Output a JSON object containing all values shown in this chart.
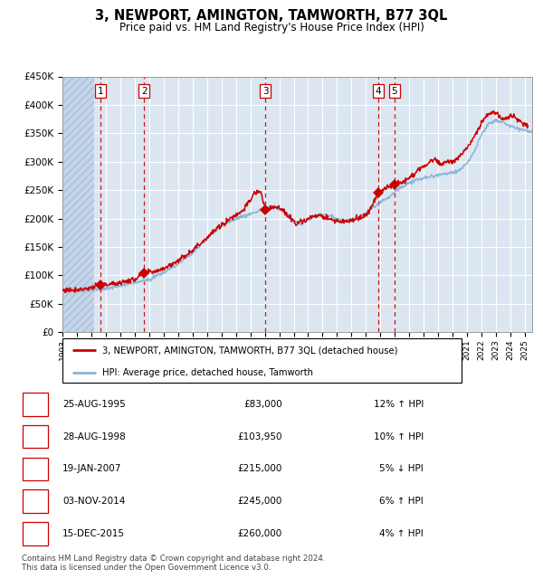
{
  "title": "3, NEWPORT, AMINGTON, TAMWORTH, B77 3QL",
  "subtitle": "Price paid vs. HM Land Registry's House Price Index (HPI)",
  "ylim": [
    0,
    450000
  ],
  "yticks": [
    0,
    50000,
    100000,
    150000,
    200000,
    250000,
    300000,
    350000,
    400000,
    450000
  ],
  "ytick_labels": [
    "£0",
    "£50K",
    "£100K",
    "£150K",
    "£200K",
    "£250K",
    "£300K",
    "£350K",
    "£400K",
    "£450K"
  ],
  "xlim_start": 1993.0,
  "xlim_end": 2025.5,
  "background_color": "#ffffff",
  "plot_bg_color": "#dce6f1",
  "hatch_region_end": 1995.2,
  "hatch_color": "#c5d5e8",
  "grid_color": "#ffffff",
  "hpi_line_color": "#8ab4d8",
  "price_line_color": "#cc0000",
  "marker_color": "#cc0000",
  "vline_color": "#cc0000",
  "sale_events": [
    {
      "num": 1,
      "date_str": "25-AUG-1995",
      "price": 83000,
      "year": 1995.648,
      "hpi_pct": 12,
      "direction": "↑"
    },
    {
      "num": 2,
      "date_str": "28-AUG-1998",
      "price": 103950,
      "year": 1998.657,
      "hpi_pct": 10,
      "direction": "↑"
    },
    {
      "num": 3,
      "date_str": "19-JAN-2007",
      "price": 215000,
      "year": 2007.052,
      "hpi_pct": 5,
      "direction": "↓"
    },
    {
      "num": 4,
      "date_str": "03-NOV-2014",
      "price": 245000,
      "year": 2014.84,
      "hpi_pct": 6,
      "direction": "↑"
    },
    {
      "num": 5,
      "date_str": "15-DEC-2015",
      "price": 260000,
      "year": 2015.956,
      "hpi_pct": 4,
      "direction": "↑"
    }
  ],
  "legend_label_price": "3, NEWPORT, AMINGTON, TAMWORTH, B77 3QL (detached house)",
  "legend_label_hpi": "HPI: Average price, detached house, Tamworth",
  "footer": "Contains HM Land Registry data © Crown copyright and database right 2024.\nThis data is licensed under the Open Government Licence v3.0.",
  "hpi_anchors": [
    [
      1993.0,
      72000
    ],
    [
      1994.0,
      73000
    ],
    [
      1995.0,
      74000
    ],
    [
      1996.0,
      77000
    ],
    [
      1997.0,
      82000
    ],
    [
      1998.0,
      87000
    ],
    [
      1999.0,
      93000
    ],
    [
      2000.0,
      105000
    ],
    [
      2001.0,
      120000
    ],
    [
      2002.0,
      140000
    ],
    [
      2003.0,
      165000
    ],
    [
      2004.0,
      188000
    ],
    [
      2005.0,
      200000
    ],
    [
      2006.0,
      208000
    ],
    [
      2007.0,
      218000
    ],
    [
      2007.8,
      220000
    ],
    [
      2008.5,
      210000
    ],
    [
      2009.0,
      195000
    ],
    [
      2009.5,
      190000
    ],
    [
      2010.0,
      198000
    ],
    [
      2010.5,
      205000
    ],
    [
      2011.0,
      208000
    ],
    [
      2011.5,
      205000
    ],
    [
      2012.0,
      200000
    ],
    [
      2012.5,
      197000
    ],
    [
      2013.0,
      198000
    ],
    [
      2013.5,
      202000
    ],
    [
      2014.0,
      210000
    ],
    [
      2014.5,
      220000
    ],
    [
      2015.0,
      228000
    ],
    [
      2015.5,
      235000
    ],
    [
      2016.0,
      248000
    ],
    [
      2016.5,
      255000
    ],
    [
      2017.0,
      263000
    ],
    [
      2017.5,
      268000
    ],
    [
      2018.0,
      272000
    ],
    [
      2018.5,
      274000
    ],
    [
      2019.0,
      276000
    ],
    [
      2019.5,
      278000
    ],
    [
      2020.0,
      280000
    ],
    [
      2020.5,
      285000
    ],
    [
      2021.0,
      298000
    ],
    [
      2021.5,
      318000
    ],
    [
      2022.0,
      348000
    ],
    [
      2022.5,
      368000
    ],
    [
      2023.0,
      372000
    ],
    [
      2023.5,
      368000
    ],
    [
      2024.0,
      362000
    ],
    [
      2024.5,
      358000
    ],
    [
      2025.0,
      355000
    ],
    [
      2025.5,
      352000
    ]
  ],
  "price_anchors": [
    [
      1993.0,
      74000
    ],
    [
      1994.0,
      75000
    ],
    [
      1995.0,
      78000
    ],
    [
      1995.648,
      83000
    ],
    [
      1996.5,
      85000
    ],
    [
      1997.5,
      90000
    ],
    [
      1998.0,
      93000
    ],
    [
      1998.657,
      103950
    ],
    [
      1999.5,
      108000
    ],
    [
      2000.5,
      118000
    ],
    [
      2001.5,
      135000
    ],
    [
      2002.5,
      155000
    ],
    [
      2003.5,
      178000
    ],
    [
      2004.5,
      198000
    ],
    [
      2005.5,
      215000
    ],
    [
      2006.0,
      232000
    ],
    [
      2006.3,
      245000
    ],
    [
      2006.7,
      248000
    ],
    [
      2007.052,
      215000
    ],
    [
      2007.4,
      218000
    ],
    [
      2007.8,
      222000
    ],
    [
      2008.3,
      212000
    ],
    [
      2008.8,
      200000
    ],
    [
      2009.2,
      192000
    ],
    [
      2009.7,
      196000
    ],
    [
      2010.2,
      202000
    ],
    [
      2010.7,
      205000
    ],
    [
      2011.2,
      202000
    ],
    [
      2011.7,
      198000
    ],
    [
      2012.2,
      194000
    ],
    [
      2012.7,
      196000
    ],
    [
      2013.2,
      198000
    ],
    [
      2013.7,
      202000
    ],
    [
      2014.2,
      210000
    ],
    [
      2014.84,
      245000
    ],
    [
      2015.3,
      252000
    ],
    [
      2015.956,
      260000
    ],
    [
      2016.3,
      262000
    ],
    [
      2016.8,
      268000
    ],
    [
      2017.3,
      278000
    ],
    [
      2017.8,
      288000
    ],
    [
      2018.3,
      298000
    ],
    [
      2018.8,
      305000
    ],
    [
      2019.1,
      295000
    ],
    [
      2019.6,
      300000
    ],
    [
      2020.1,
      302000
    ],
    [
      2020.6,
      310000
    ],
    [
      2021.1,
      328000
    ],
    [
      2021.6,
      348000
    ],
    [
      2022.0,
      368000
    ],
    [
      2022.4,
      382000
    ],
    [
      2022.8,
      388000
    ],
    [
      2023.1,
      385000
    ],
    [
      2023.4,
      375000
    ],
    [
      2023.8,
      378000
    ],
    [
      2024.1,
      382000
    ],
    [
      2024.5,
      375000
    ],
    [
      2024.9,
      368000
    ],
    [
      2025.2,
      362000
    ]
  ]
}
